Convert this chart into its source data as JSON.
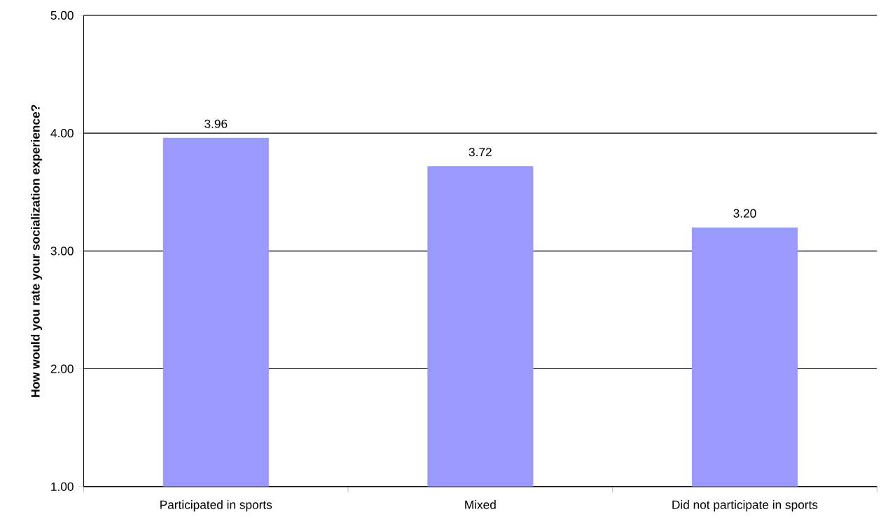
{
  "chart_data": {
    "type": "bar",
    "ylabel": "How would you rate your socialization experience?",
    "categories": [
      "Participated in sports",
      "Mixed",
      "Did not participate in sports"
    ],
    "values": [
      3.96,
      3.72,
      3.2
    ],
    "value_labels": [
      "3.96",
      "3.72",
      "3.20"
    ],
    "color": "#9999ff",
    "ylim": [
      1,
      5
    ],
    "yticks": [
      {
        "value": 1,
        "label": "1.00"
      },
      {
        "value": 2,
        "label": "2.00"
      },
      {
        "value": 3,
        "label": "3.00"
      },
      {
        "value": 4,
        "label": "4.00"
      },
      {
        "value": 5,
        "label": "5.00"
      }
    ],
    "grid": "y"
  }
}
